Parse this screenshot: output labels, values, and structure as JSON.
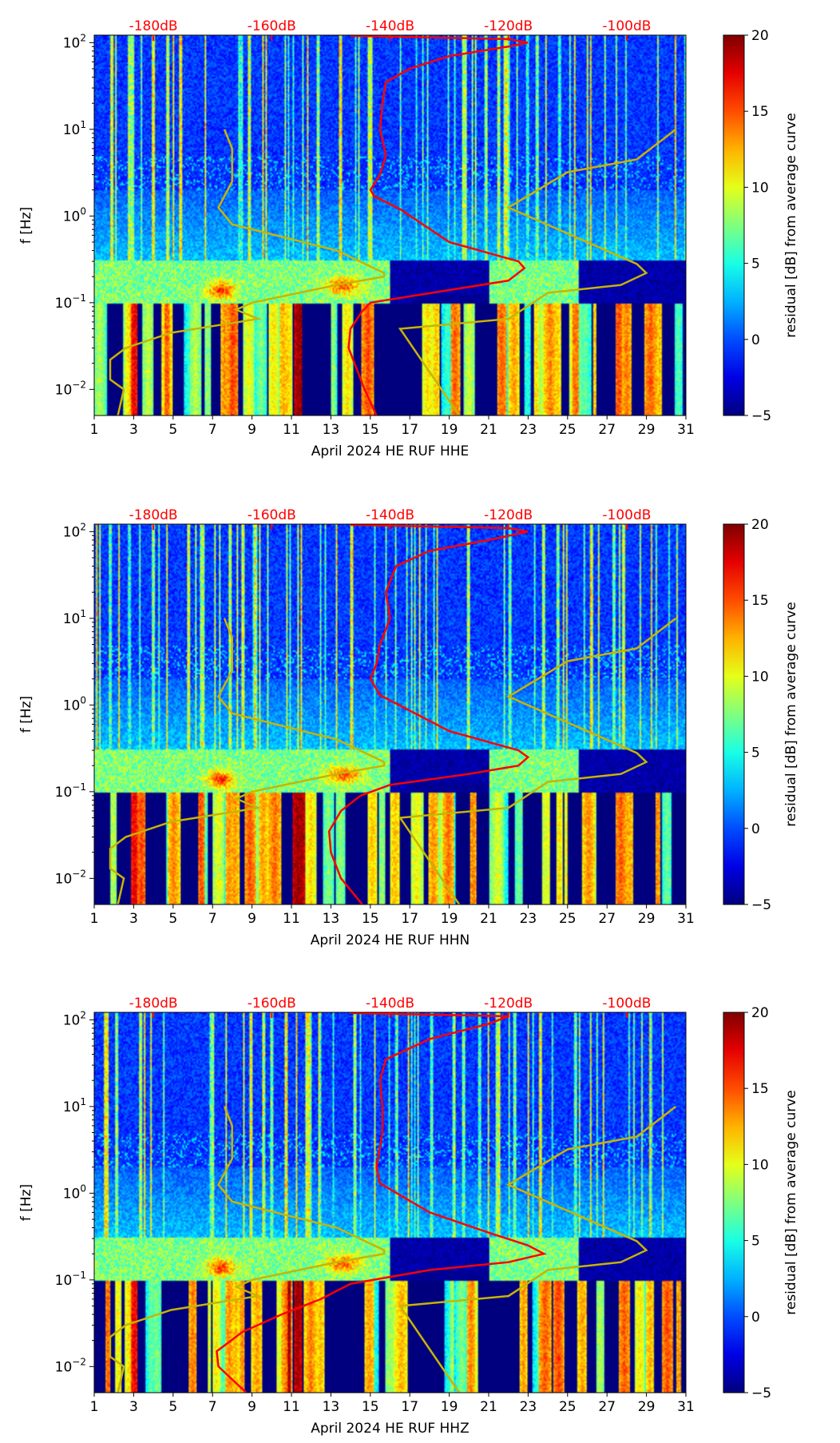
{
  "chart_data": [
    {
      "type": "heatmap",
      "title": "April 2024 HE RUF  HHE",
      "xlabel": "April 2024 HE RUF  HHE",
      "ylabel": "f [Hz]",
      "colorbar_label": "residual [dB] from average curve",
      "colorbar_range": [
        -5,
        20
      ],
      "colorbar_ticks": [
        "20",
        "15",
        "10",
        "5",
        "0",
        "−5"
      ],
      "xlim": [
        1,
        31
      ],
      "xticks": [
        "1",
        "3",
        "5",
        "7",
        "9",
        "11",
        "13",
        "15",
        "17",
        "19",
        "21",
        "23",
        "25",
        "27",
        "29",
        "31"
      ],
      "ylim_hz": [
        0.005,
        122
      ],
      "yticks": [
        "10^2",
        "10^1",
        "10^0",
        "10^-1",
        "10^-2"
      ],
      "top_axis_ticks": [
        "-180dB",
        "-160dB",
        "-140dB",
        "-120dB",
        "-100dB"
      ],
      "top_axis_range_db": [
        -190,
        -90
      ],
      "average_curve": {
        "color": "#ff0000",
        "points_db_hz": [
          [
            -142.3,
            0.005
          ],
          [
            -144.3,
            0.01
          ],
          [
            -146,
            0.02
          ],
          [
            -147,
            0.03
          ],
          [
            -146.7,
            0.05
          ],
          [
            -144.7,
            0.08
          ],
          [
            -143.3,
            0.1
          ],
          [
            -130,
            0.14
          ],
          [
            -120,
            0.18
          ],
          [
            -117.3,
            0.25
          ],
          [
            -118.3,
            0.3
          ],
          [
            -130,
            0.5
          ],
          [
            -138.3,
            1.2
          ],
          [
            -142.7,
            1.7
          ],
          [
            -143.3,
            2
          ],
          [
            -141.7,
            3
          ],
          [
            -140.7,
            5
          ],
          [
            -141.7,
            10
          ],
          [
            -141.3,
            20
          ],
          [
            -140.7,
            35
          ],
          [
            -136.7,
            50
          ],
          [
            -130,
            70
          ],
          [
            -120,
            90
          ],
          [
            -116.7,
            100
          ],
          [
            -120,
            110
          ],
          [
            -146.7,
            120
          ]
        ]
      },
      "low_noise_model": {
        "color": "#c8b400",
        "points_db_hz": [
          [
            -186,
            0.005
          ],
          [
            -185,
            0.01
          ],
          [
            -187.3,
            0.013
          ],
          [
            -187.3,
            0.022
          ],
          [
            -184.7,
            0.03
          ],
          [
            -177,
            0.045
          ],
          [
            -162.3,
            0.065
          ],
          [
            -166,
            0.083
          ],
          [
            -163.3,
            0.1
          ],
          [
            -149,
            0.16
          ],
          [
            -141,
            0.2
          ],
          [
            -141,
            0.22
          ],
          [
            -149,
            0.4
          ],
          [
            -166.7,
            0.8
          ],
          [
            -169,
            1.25
          ],
          [
            -166.7,
            2.5
          ],
          [
            -166.7,
            6
          ],
          [
            -168,
            10
          ]
        ]
      },
      "high_noise_model": {
        "color": "#c8b400",
        "points_db_hz": [
          [
            -128.3,
            0.005
          ],
          [
            -138.3,
            0.05
          ],
          [
            -120,
            0.065
          ],
          [
            -113.3,
            0.13
          ],
          [
            -101,
            0.16
          ],
          [
            -96.7,
            0.22
          ],
          [
            -98.3,
            0.28
          ],
          [
            -120,
            1.25
          ],
          [
            -110,
            3.2
          ],
          [
            -98.3,
            4.5
          ],
          [
            -91.7,
            10
          ]
        ]
      }
    },
    {
      "type": "heatmap",
      "title": "April 2024 HE RUF  HHN",
      "xlabel": "April 2024 HE RUF  HHN",
      "ylabel": "f [Hz]",
      "colorbar_label": "residual [dB] from average curve",
      "colorbar_range": [
        -5,
        20
      ],
      "colorbar_ticks": [
        "20",
        "15",
        "10",
        "5",
        "0",
        "−5"
      ],
      "xlim": [
        1,
        31
      ],
      "xticks": [
        "1",
        "3",
        "5",
        "7",
        "9",
        "11",
        "13",
        "15",
        "17",
        "19",
        "21",
        "23",
        "25",
        "27",
        "29",
        "31"
      ],
      "ylim_hz": [
        0.005,
        122
      ],
      "yticks": [
        "10^2",
        "10^1",
        "10^0",
        "10^-1",
        "10^-2"
      ],
      "top_axis_ticks": [
        "-180dB",
        "-160dB",
        "-140dB",
        "-120dB",
        "-100dB"
      ],
      "top_axis_range_db": [
        -190,
        -90
      ],
      "average_curve": {
        "color": "#ff0000",
        "points_db_hz": [
          [
            -144.7,
            0.005
          ],
          [
            -148.3,
            0.01
          ],
          [
            -150,
            0.02
          ],
          [
            -150.3,
            0.035
          ],
          [
            -148.3,
            0.06
          ],
          [
            -145,
            0.09
          ],
          [
            -140,
            0.12
          ],
          [
            -126.7,
            0.16
          ],
          [
            -118.3,
            0.2
          ],
          [
            -116.7,
            0.25
          ],
          [
            -118.3,
            0.3
          ],
          [
            -130,
            0.5
          ],
          [
            -141.7,
            1.3
          ],
          [
            -143.3,
            2
          ],
          [
            -142.3,
            3
          ],
          [
            -141.7,
            5
          ],
          [
            -140,
            10
          ],
          [
            -140.7,
            20
          ],
          [
            -139,
            40
          ],
          [
            -133.3,
            60
          ],
          [
            -123.3,
            80
          ],
          [
            -116.7,
            100
          ],
          [
            -120,
            110
          ],
          [
            -146.7,
            120
          ]
        ]
      },
      "low_noise_model": {
        "color": "#c8b400",
        "points_db_hz": [
          [
            -186,
            0.005
          ],
          [
            -185,
            0.01
          ],
          [
            -187.3,
            0.013
          ],
          [
            -187.3,
            0.022
          ],
          [
            -184.7,
            0.03
          ],
          [
            -177,
            0.045
          ],
          [
            -162.3,
            0.065
          ],
          [
            -166,
            0.083
          ],
          [
            -163.3,
            0.1
          ],
          [
            -149,
            0.16
          ],
          [
            -141,
            0.2
          ],
          [
            -141,
            0.22
          ],
          [
            -149,
            0.4
          ],
          [
            -166.7,
            0.8
          ],
          [
            -169,
            1.25
          ],
          [
            -166.7,
            2.5
          ],
          [
            -166.7,
            6
          ],
          [
            -168,
            10
          ]
        ]
      },
      "high_noise_model": {
        "color": "#c8b400",
        "points_db_hz": [
          [
            -128.3,
            0.005
          ],
          [
            -138.3,
            0.05
          ],
          [
            -120,
            0.065
          ],
          [
            -113.3,
            0.13
          ],
          [
            -101,
            0.16
          ],
          [
            -96.7,
            0.22
          ],
          [
            -98.3,
            0.28
          ],
          [
            -120,
            1.25
          ],
          [
            -110,
            3.2
          ],
          [
            -98.3,
            4.5
          ],
          [
            -91.7,
            10
          ]
        ]
      }
    },
    {
      "type": "heatmap",
      "title": "April 2024 HE RUF  HHZ",
      "xlabel": "April 2024 HE RUF  HHZ",
      "ylabel": "f [Hz]",
      "colorbar_label": "residual [dB] from average curve",
      "colorbar_range": [
        -5,
        20
      ],
      "colorbar_ticks": [
        "20",
        "15",
        "10",
        "5",
        "0",
        "−5"
      ],
      "xlim": [
        1,
        31
      ],
      "xticks": [
        "1",
        "3",
        "5",
        "7",
        "9",
        "11",
        "13",
        "15",
        "17",
        "19",
        "21",
        "23",
        "25",
        "27",
        "29",
        "31"
      ],
      "ylim_hz": [
        0.005,
        122
      ],
      "yticks": [
        "10^2",
        "10^1",
        "10^0",
        "10^-1",
        "10^-2"
      ],
      "top_axis_ticks": [
        "-180dB",
        "-160dB",
        "-140dB",
        "-120dB",
        "-100dB"
      ],
      "top_axis_range_db": [
        -190,
        -90
      ],
      "average_curve": {
        "color": "#ff0000",
        "points_db_hz": [
          [
            -164.3,
            0.005
          ],
          [
            -169,
            0.01
          ],
          [
            -169.3,
            0.015
          ],
          [
            -165,
            0.025
          ],
          [
            -158.3,
            0.04
          ],
          [
            -151.7,
            0.06
          ],
          [
            -146.7,
            0.09
          ],
          [
            -133.3,
            0.13
          ],
          [
            -120,
            0.16
          ],
          [
            -114,
            0.2
          ],
          [
            -116.7,
            0.25
          ],
          [
            -123.3,
            0.35
          ],
          [
            -133.3,
            0.6
          ],
          [
            -141.7,
            1.3
          ],
          [
            -142.3,
            2
          ],
          [
            -141.3,
            5
          ],
          [
            -141.3,
            10
          ],
          [
            -141.7,
            20
          ],
          [
            -140.7,
            35
          ],
          [
            -133.3,
            60
          ],
          [
            -123.3,
            90
          ],
          [
            -120,
            110
          ],
          [
            -146.7,
            120
          ]
        ]
      },
      "low_noise_model": {
        "color": "#c8b400",
        "points_db_hz": [
          [
            -186,
            0.005
          ],
          [
            -185,
            0.01
          ],
          [
            -187.3,
            0.013
          ],
          [
            -187.3,
            0.022
          ],
          [
            -184.7,
            0.03
          ],
          [
            -177,
            0.045
          ],
          [
            -162.3,
            0.065
          ],
          [
            -166,
            0.083
          ],
          [
            -163.3,
            0.1
          ],
          [
            -149,
            0.16
          ],
          [
            -141,
            0.2
          ],
          [
            -141,
            0.22
          ],
          [
            -149,
            0.4
          ],
          [
            -166.7,
            0.8
          ],
          [
            -169,
            1.25
          ],
          [
            -166.7,
            2.5
          ],
          [
            -166.7,
            6
          ],
          [
            -168,
            10
          ]
        ]
      },
      "high_noise_model": {
        "color": "#c8b400",
        "points_db_hz": [
          [
            -128.3,
            0.005
          ],
          [
            -138.3,
            0.05
          ],
          [
            -120,
            0.065
          ],
          [
            -113.3,
            0.13
          ],
          [
            -101,
            0.16
          ],
          [
            -96.7,
            0.22
          ],
          [
            -98.3,
            0.28
          ],
          [
            -120,
            1.25
          ],
          [
            -110,
            3.2
          ],
          [
            -98.3,
            4.5
          ],
          [
            -91.7,
            10
          ]
        ]
      }
    }
  ]
}
